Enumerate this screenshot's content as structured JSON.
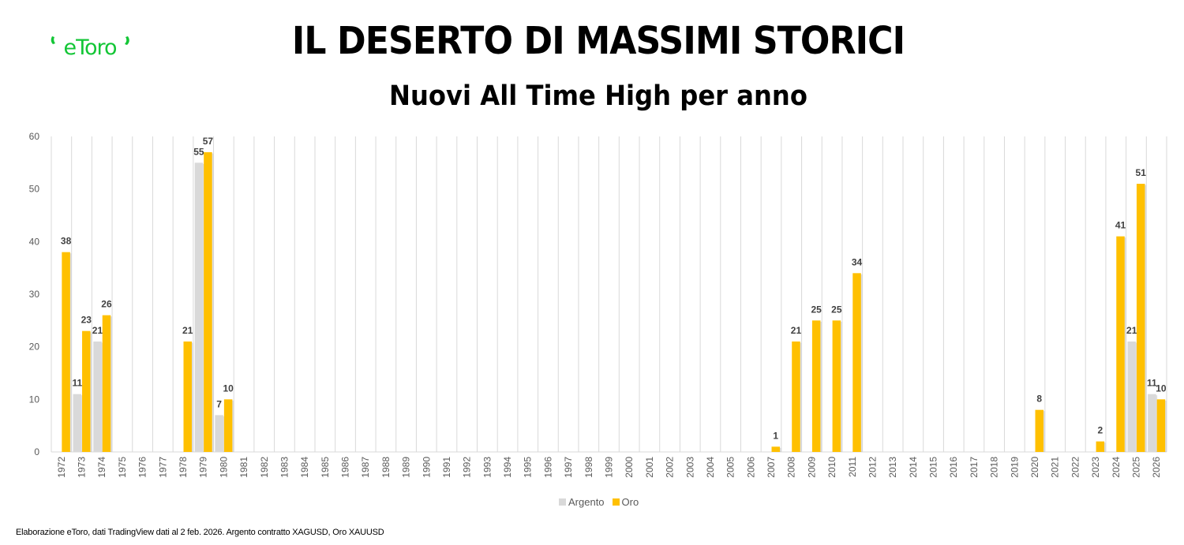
{
  "header": {
    "logo_text": "eToro",
    "title": "IL DESERTO DI MASSIMI STORICI",
    "subtitle": "Nuovi All Time High per anno"
  },
  "legend": [
    {
      "name": "Argento",
      "color": "#D9D9D9"
    },
    {
      "name": "Oro",
      "color": "#FFC000"
    }
  ],
  "footer": {
    "source_text": "Elaborazione eToro, dati TradingView dati al 2 feb. 2026. Argento contratto XAGUSD, Oro XAUUSD"
  },
  "colors": {
    "argento": "#D9D9D9",
    "oro": "#FFC000",
    "brand_green": "#13C636",
    "grid": "#D9D9D9",
    "axis_text": "#595959",
    "label_text": "#404040"
  },
  "chart_data": {
    "type": "bar",
    "title": "IL DESERTO DI MASSIMI STORICI",
    "subtitle": "Nuovi All Time High per anno",
    "xlabel": "",
    "ylabel": "",
    "ylim": [
      0,
      60
    ],
    "yticks": [
      0,
      10,
      20,
      30,
      40,
      50,
      60
    ],
    "grid": "vertical category lines",
    "legend_position": "bottom",
    "categories": [
      "1972",
      "1973",
      "1974",
      "1975",
      "1976",
      "1977",
      "1978",
      "1979",
      "1980",
      "1981",
      "1982",
      "1983",
      "1984",
      "1985",
      "1986",
      "1987",
      "1988",
      "1989",
      "1990",
      "1991",
      "1992",
      "1993",
      "1994",
      "1995",
      "1996",
      "1997",
      "1998",
      "1999",
      "2000",
      "2001",
      "2002",
      "2003",
      "2004",
      "2005",
      "2006",
      "2007",
      "2008",
      "2009",
      "2010",
      "2011",
      "2012",
      "2013",
      "2014",
      "2015",
      "2016",
      "2017",
      "2018",
      "2019",
      "2020",
      "2021",
      "2022",
      "2023",
      "2024",
      "2025",
      "2026"
    ],
    "series": [
      {
        "name": "Argento",
        "color": "#D9D9D9",
        "values": [
          0,
          11,
          21,
          0,
          0,
          0,
          0,
          55,
          7,
          0,
          0,
          0,
          0,
          0,
          0,
          0,
          0,
          0,
          0,
          0,
          0,
          0,
          0,
          0,
          0,
          0,
          0,
          0,
          0,
          0,
          0,
          0,
          0,
          0,
          0,
          0,
          0,
          0,
          0,
          0,
          0,
          0,
          0,
          0,
          0,
          0,
          0,
          0,
          0,
          0,
          0,
          0,
          0,
          21,
          11
        ]
      },
      {
        "name": "Oro",
        "color": "#FFC000",
        "values": [
          38,
          23,
          26,
          0,
          0,
          0,
          21,
          57,
          10,
          0,
          0,
          0,
          0,
          0,
          0,
          0,
          0,
          0,
          0,
          0,
          0,
          0,
          0,
          0,
          0,
          0,
          0,
          0,
          0,
          0,
          0,
          0,
          0,
          0,
          0,
          1,
          21,
          25,
          25,
          34,
          0,
          0,
          0,
          0,
          0,
          0,
          0,
          0,
          8,
          0,
          0,
          2,
          41,
          51,
          10
        ]
      }
    ],
    "data_labels_note": "Labels shown only for non-zero values"
  }
}
